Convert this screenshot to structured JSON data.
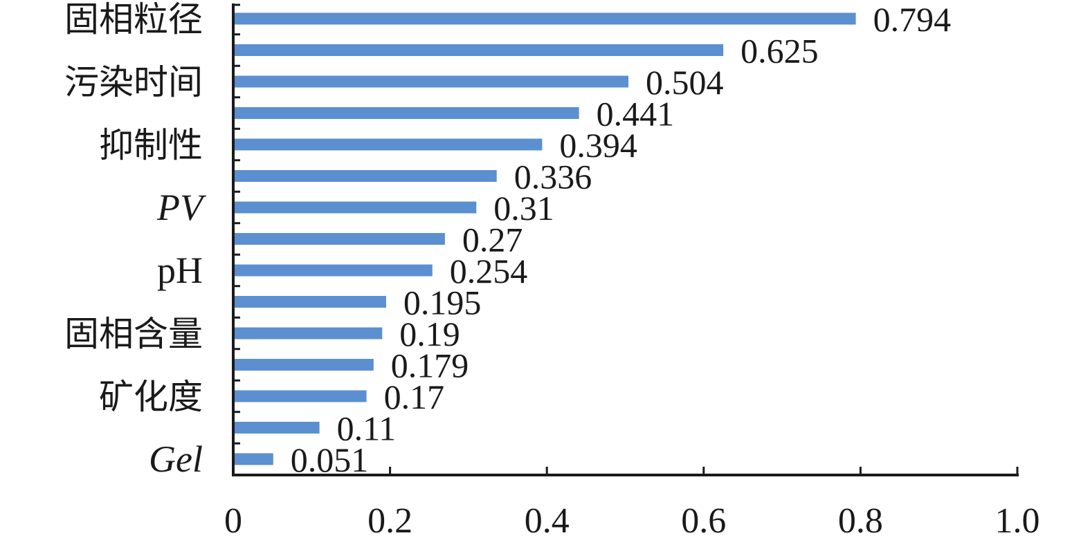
{
  "chart_data": {
    "type": "bar",
    "orientation": "horizontal",
    "title": "",
    "xlabel": "",
    "ylabel": "",
    "xlim": [
      0,
      1.0
    ],
    "x_ticks": [
      "0",
      "0.2",
      "0.4",
      "0.6",
      "0.8",
      "1.0"
    ],
    "bar_color": "#5b8fd0",
    "grid": false,
    "legend": "none",
    "bars": [
      {
        "label": "固相粒径",
        "value": 0.794,
        "value_label": "0.794",
        "label_style": "cjk"
      },
      {
        "label": "",
        "value": 0.625,
        "value_label": "0.625"
      },
      {
        "label": "污染时间",
        "value": 0.504,
        "value_label": "0.504",
        "label_style": "cjk"
      },
      {
        "label": "",
        "value": 0.441,
        "value_label": "0.441"
      },
      {
        "label": "抑制性",
        "value": 0.394,
        "value_label": "0.394",
        "label_style": "cjk"
      },
      {
        "label": "",
        "value": 0.336,
        "value_label": "0.336"
      },
      {
        "label": "PV",
        "value": 0.31,
        "value_label": "0.31",
        "label_style": "latin-italic"
      },
      {
        "label": "",
        "value": 0.27,
        "value_label": "0.27"
      },
      {
        "label": "pH",
        "value": 0.254,
        "value_label": "0.254",
        "label_style": "latin"
      },
      {
        "label": "",
        "value": 0.195,
        "value_label": "0.195"
      },
      {
        "label": "固相含量",
        "value": 0.19,
        "value_label": "0.19",
        "label_style": "cjk"
      },
      {
        "label": "",
        "value": 0.179,
        "value_label": "0.179"
      },
      {
        "label": "矿化度",
        "value": 0.17,
        "value_label": "0.17",
        "label_style": "cjk"
      },
      {
        "label": "",
        "value": 0.11,
        "value_label": "0.11"
      },
      {
        "label": "Gel",
        "value": 0.051,
        "value_label": "0.051",
        "label_style": "latin-italic"
      }
    ]
  }
}
